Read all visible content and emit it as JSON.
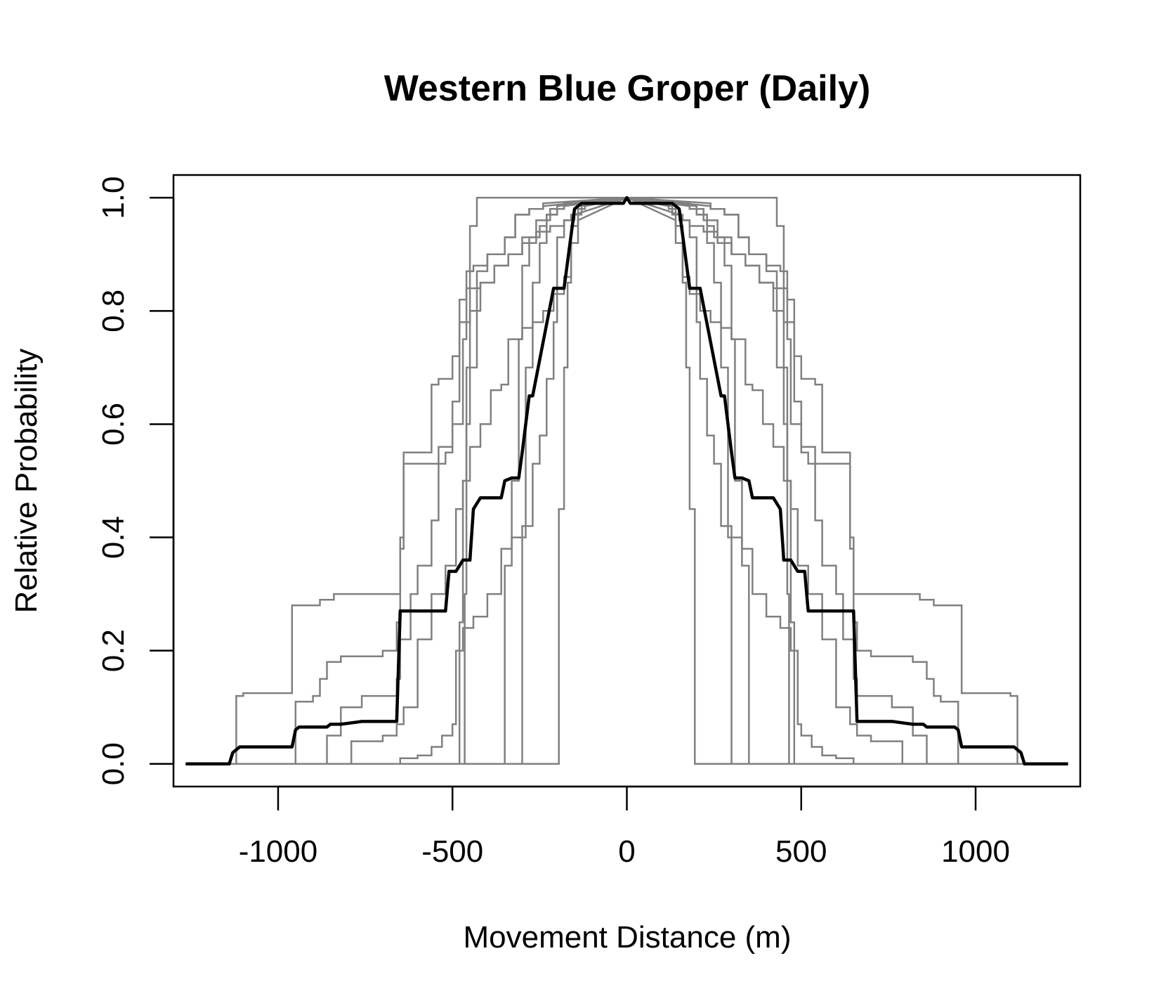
{
  "chart_data": {
    "type": "line",
    "title": "Western Blue Groper (Daily)",
    "xlabel": "Movement Distance (m)",
    "ylabel": "Relative Probability",
    "xlim": [
      -1300,
      1300
    ],
    "ylim": [
      -0.04,
      1.04
    ],
    "x_ticks": [
      -1000,
      -500,
      0,
      500,
      1000
    ],
    "x_tick_labels": [
      "-1000",
      "-500",
      "0",
      "500",
      "1000"
    ],
    "y_ticks": [
      0,
      0.2,
      0.4,
      0.6,
      0.8,
      1
    ],
    "y_tick_labels": [
      "0.0",
      "0.2",
      "0.4",
      "0.6",
      "0.8",
      "1.0"
    ],
    "grid": false,
    "legend": "none",
    "colors": {
      "individual": "#808080",
      "mean": "#000000"
    },
    "mean_series": {
      "x": [
        -1265,
        -1140,
        -1130,
        -1110,
        -960,
        -950,
        -940,
        -860,
        -850,
        -820,
        -760,
        -750,
        -660,
        -650,
        -640,
        -520,
        -510,
        -490,
        -470,
        -450,
        -440,
        -420,
        -380,
        -360,
        -350,
        -330,
        -310,
        -300,
        -280,
        -270,
        -210,
        -200,
        -180,
        -150,
        -130,
        -80,
        -10,
        0,
        10,
        80,
        130,
        150,
        180,
        200,
        210,
        270,
        280,
        300,
        310,
        330,
        350,
        360,
        380,
        420,
        440,
        450,
        470,
        490,
        510,
        520,
        640,
        650,
        660,
        750,
        760,
        820,
        850,
        860,
        940,
        950,
        960,
        1110,
        1130,
        1140,
        1265
      ],
      "y": [
        0.0,
        0.0,
        0.02,
        0.03,
        0.03,
        0.06,
        0.065,
        0.065,
        0.07,
        0.07,
        0.075,
        0.075,
        0.075,
        0.27,
        0.27,
        0.27,
        0.34,
        0.34,
        0.36,
        0.36,
        0.45,
        0.47,
        0.47,
        0.47,
        0.5,
        0.505,
        0.505,
        0.55,
        0.65,
        0.65,
        0.84,
        0.84,
        0.84,
        0.98,
        0.99,
        0.99,
        0.99,
        1.0,
        0.99,
        0.99,
        0.99,
        0.98,
        0.84,
        0.84,
        0.84,
        0.65,
        0.65,
        0.55,
        0.505,
        0.505,
        0.5,
        0.47,
        0.47,
        0.47,
        0.45,
        0.36,
        0.36,
        0.34,
        0.34,
        0.27,
        0.27,
        0.27,
        0.075,
        0.075,
        0.075,
        0.07,
        0.07,
        0.065,
        0.065,
        0.06,
        0.03,
        0.03,
        0.02,
        0.0,
        0.0
      ]
    },
    "individual_series": [
      {
        "steps": [
          [
            -470,
            0.0
          ],
          [
            -465,
            0.3
          ],
          [
            -460,
            0.6
          ],
          [
            -450,
            0.95
          ],
          [
            -430,
            1.0
          ]
        ]
      },
      {
        "steps": [
          [
            -490,
            0.0
          ],
          [
            -480,
            0.25
          ],
          [
            -470,
            0.5
          ],
          [
            -460,
            0.7
          ],
          [
            -430,
            0.87
          ],
          [
            -400,
            0.9
          ],
          [
            -350,
            0.93
          ],
          [
            -320,
            0.97
          ],
          [
            -280,
            0.98
          ],
          [
            -240,
            0.985
          ]
        ]
      },
      {
        "steps": [
          [
            -360,
            0.0
          ],
          [
            -350,
            0.35
          ],
          [
            -330,
            0.5
          ],
          [
            -310,
            0.75
          ],
          [
            -300,
            0.88
          ],
          [
            -280,
            0.93
          ],
          [
            -250,
            0.95
          ],
          [
            -230,
            0.97
          ],
          [
            -200,
            0.98
          ],
          [
            -180,
            0.985
          ]
        ]
      },
      {
        "steps": [
          [
            -200,
            0.0
          ],
          [
            -195,
            0.45
          ],
          [
            -180,
            0.7
          ],
          [
            -170,
            0.85
          ],
          [
            -160,
            0.95
          ],
          [
            -140,
            0.98
          ],
          [
            -120,
            0.985
          ]
        ]
      },
      {
        "steps": [
          [
            -310,
            0.0
          ],
          [
            -300,
            0.4
          ],
          [
            -290,
            0.7
          ],
          [
            -270,
            0.85
          ],
          [
            -250,
            0.92
          ],
          [
            -230,
            0.97
          ],
          [
            -200,
            0.985
          ]
        ]
      },
      {
        "steps": [
          [
            -1130,
            0.0
          ],
          [
            -1120,
            0.12
          ],
          [
            -1100,
            0.125
          ],
          [
            -970,
            0.125
          ],
          [
            -960,
            0.28
          ],
          [
            -880,
            0.29
          ],
          [
            -840,
            0.3
          ],
          [
            -740,
            0.3
          ],
          [
            -650,
            0.38
          ],
          [
            -640,
            0.53
          ],
          [
            -520,
            0.55
          ],
          [
            -500,
            0.6
          ],
          [
            -470,
            0.75
          ],
          [
            -460,
            0.87
          ],
          [
            -440,
            0.88
          ],
          [
            -400,
            0.9
          ],
          [
            -350,
            0.93
          ],
          [
            -320,
            0.97
          ],
          [
            -280,
            0.98
          ],
          [
            -240,
            0.99
          ]
        ]
      },
      {
        "steps": [
          [
            -960,
            0.0
          ],
          [
            -950,
            0.11
          ],
          [
            -900,
            0.12
          ],
          [
            -880,
            0.15
          ],
          [
            -860,
            0.18
          ],
          [
            -820,
            0.19
          ],
          [
            -780,
            0.19
          ],
          [
            -700,
            0.2
          ],
          [
            -660,
            0.25
          ],
          [
            -650,
            0.4
          ],
          [
            -640,
            0.55
          ],
          [
            -560,
            0.67
          ],
          [
            -540,
            0.68
          ],
          [
            -500,
            0.72
          ],
          [
            -480,
            0.82
          ],
          [
            -460,
            0.84
          ],
          [
            -420,
            0.85
          ],
          [
            -380,
            0.88
          ],
          [
            -340,
            0.9
          ],
          [
            -300,
            0.93
          ],
          [
            -260,
            0.96
          ],
          [
            -220,
            0.98
          ],
          [
            -180,
            0.99
          ]
        ]
      },
      {
        "steps": [
          [
            -870,
            0.0
          ],
          [
            -860,
            0.05
          ],
          [
            -820,
            0.1
          ],
          [
            -760,
            0.12
          ],
          [
            -660,
            0.15
          ],
          [
            -650,
            0.22
          ],
          [
            -620,
            0.3
          ],
          [
            -600,
            0.35
          ],
          [
            -560,
            0.43
          ],
          [
            -540,
            0.56
          ],
          [
            -500,
            0.64
          ],
          [
            -480,
            0.78
          ],
          [
            -450,
            0.8
          ],
          [
            -420,
            0.85
          ],
          [
            -380,
            0.88
          ],
          [
            -340,
            0.9
          ],
          [
            -300,
            0.92
          ],
          [
            -260,
            0.94
          ],
          [
            -220,
            0.95
          ],
          [
            -180,
            0.96
          ],
          [
            -150,
            0.97
          ]
        ]
      },
      {
        "steps": [
          [
            -660,
            0.0
          ],
          [
            -650,
            0.01
          ],
          [
            -600,
            0.015
          ],
          [
            -560,
            0.03
          ],
          [
            -530,
            0.05
          ],
          [
            -500,
            0.07
          ],
          [
            -490,
            0.2
          ],
          [
            -470,
            0.24
          ],
          [
            -440,
            0.26
          ],
          [
            -400,
            0.3
          ],
          [
            -360,
            0.38
          ],
          [
            -330,
            0.4
          ],
          [
            -300,
            0.42
          ],
          [
            -270,
            0.53
          ],
          [
            -250,
            0.58
          ],
          [
            -230,
            0.68
          ],
          [
            -210,
            0.78
          ],
          [
            -200,
            0.93
          ],
          [
            -180,
            0.96
          ],
          [
            -160,
            0.97
          ],
          [
            -130,
            0.985
          ]
        ]
      },
      {
        "steps": [
          [
            -800,
            0.0
          ],
          [
            -790,
            0.04
          ],
          [
            -700,
            0.05
          ],
          [
            -660,
            0.07
          ],
          [
            -640,
            0.1
          ],
          [
            -600,
            0.22
          ],
          [
            -560,
            0.3
          ],
          [
            -520,
            0.35
          ],
          [
            -490,
            0.45
          ],
          [
            -470,
            0.5
          ],
          [
            -450,
            0.56
          ],
          [
            -420,
            0.6
          ],
          [
            -390,
            0.66
          ],
          [
            -360,
            0.67
          ],
          [
            -340,
            0.75
          ],
          [
            -300,
            0.77
          ],
          [
            -270,
            0.78
          ],
          [
            -240,
            0.8
          ],
          [
            -210,
            0.83
          ],
          [
            -180,
            0.86
          ],
          [
            -160,
            0.92
          ],
          [
            -140,
            0.96
          ]
        ]
      }
    ]
  }
}
